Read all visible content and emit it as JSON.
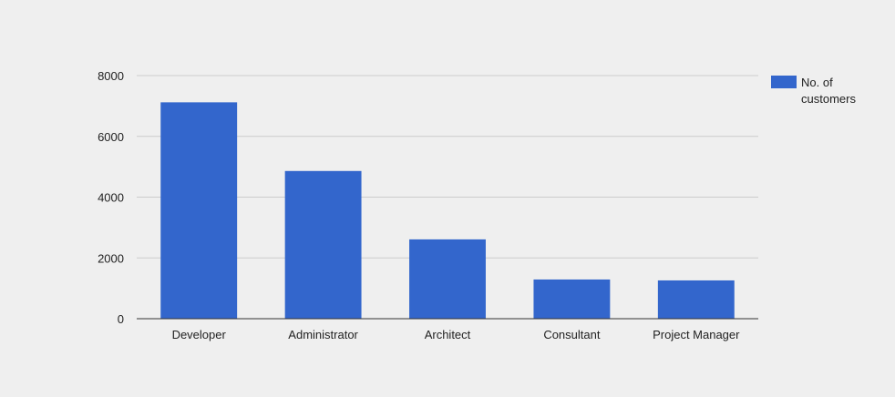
{
  "chart_data": {
    "type": "bar",
    "categories": [
      "Developer",
      "Administrator",
      "Architect",
      "Consultant",
      "Project Manager"
    ],
    "series": [
      {
        "name": "No. of customers",
        "color": "#3366cc",
        "values": [
          7120,
          4860,
          2610,
          1290,
          1260
        ]
      }
    ],
    "ylim": [
      0,
      8000
    ],
    "yticks": [
      0,
      2000,
      4000,
      6000,
      8000
    ],
    "grid": true,
    "legend": {
      "position": "right",
      "lines": [
        "No. of",
        "customers"
      ]
    }
  }
}
